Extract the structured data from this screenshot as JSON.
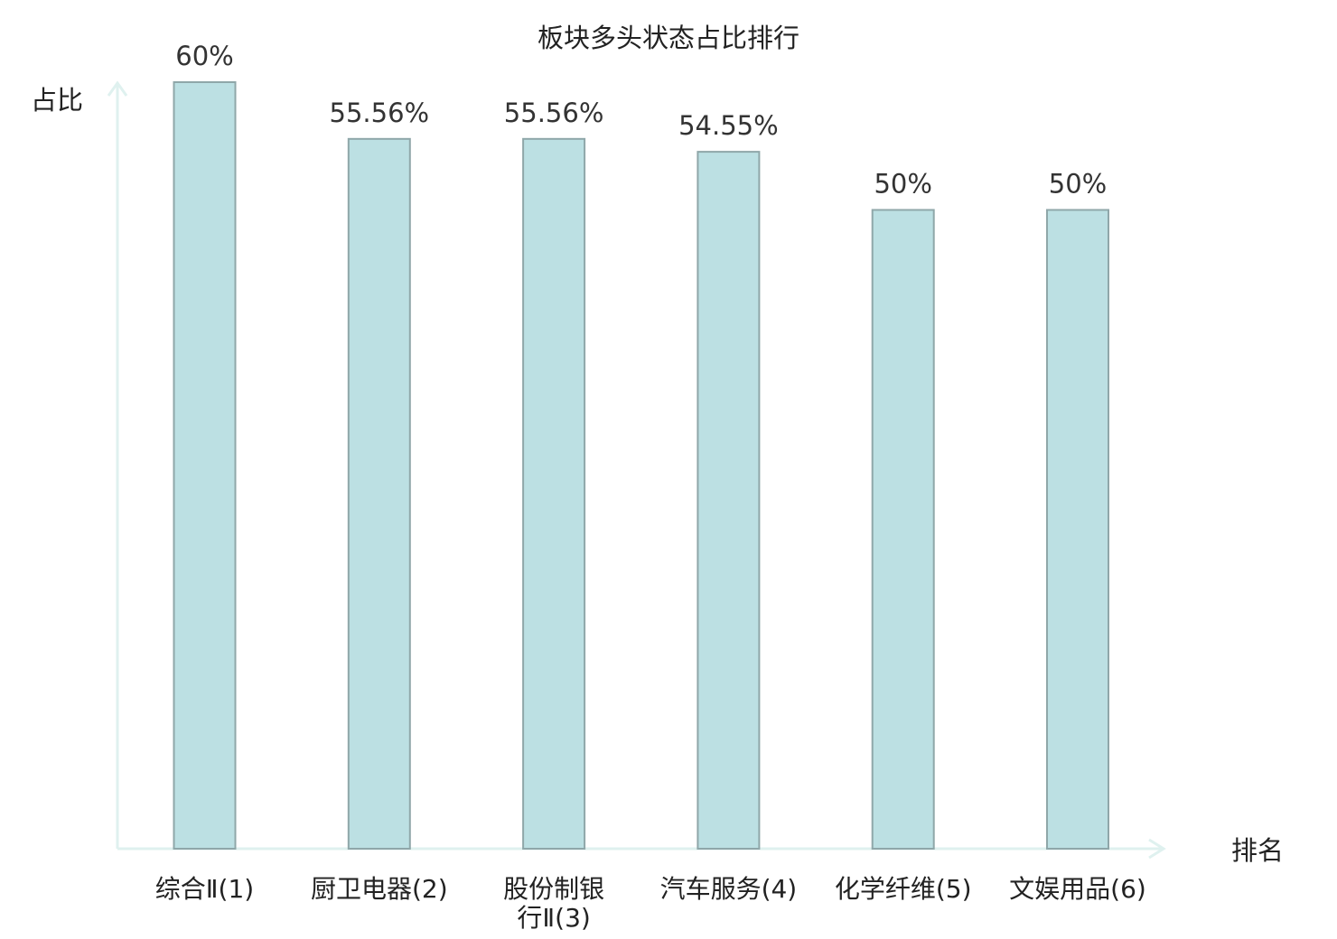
{
  "chart_data": {
    "type": "bar",
    "title": "板块多头状态占比排行",
    "ylabel": "占比",
    "xlabel": "排名",
    "categories": [
      "综合Ⅱ(1)",
      "厨卫电器(2)",
      "股份制银行Ⅱ(3)",
      "汽车服务(4)",
      "化学纤维(5)",
      "文娱用品(6)"
    ],
    "category_lines": [
      [
        "综合Ⅱ(1)"
      ],
      [
        "厨卫电器(2)"
      ],
      [
        "股份制银",
        "行Ⅱ(3)"
      ],
      [
        "汽车服务(4)"
      ],
      [
        "化学纤维(5)"
      ],
      [
        "文娱用品(6)"
      ]
    ],
    "values": [
      60,
      55.56,
      55.56,
      54.55,
      50,
      50
    ],
    "value_labels": [
      "60%",
      "55.56%",
      "55.56%",
      "54.55%",
      "50%",
      "50%"
    ],
    "ylim": [
      0,
      60
    ],
    "grid": false,
    "legend": "none",
    "highlight_index": 5,
    "colors": {
      "bar_fill": "#bce0e3",
      "bar_stroke": "#8fa7a9",
      "axis": "#dff1ef",
      "label": "#222222",
      "value_label": "#333333",
      "highlight": "#e01b1b"
    }
  }
}
